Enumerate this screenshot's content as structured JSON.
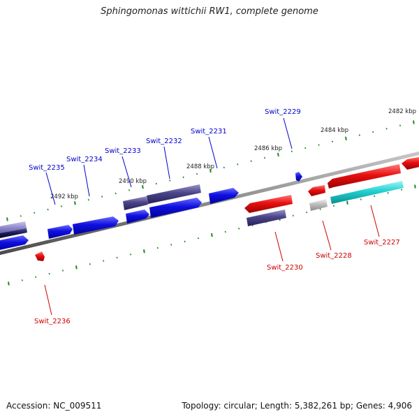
{
  "title": "Sphingomonas wittichii RW1, complete genome",
  "footer": {
    "accession": "Accession: NC_009511",
    "stats": "Topology: circular; Length: 5,382,261 bp; Genes: 4,906"
  },
  "colors": {
    "backbone": "#8a8a8a",
    "tick": "#1f8a1f",
    "label_plus": "#0000cc",
    "label_minus": "#cc0000",
    "gene_blue": "#1010e0",
    "gene_slate": "#4a4488",
    "gene_red": "#e81010",
    "gene_cyan": "#20d0d0",
    "gene_gray": "#b8b8b8"
  },
  "scale_labels": [
    "2482 kbp",
    "2484 kbp",
    "2486 kbp",
    "2488 kbp",
    "2490 kbp",
    "2492 kbp"
  ],
  "gene_labels": [
    {
      "id": "swit-2229",
      "text": "Swit_2229",
      "strand": "plus"
    },
    {
      "id": "swit-2231",
      "text": "Swit_2231",
      "strand": "plus"
    },
    {
      "id": "swit-2232",
      "text": "Swit_2232",
      "strand": "plus"
    },
    {
      "id": "swit-2233",
      "text": "Swit_2233",
      "strand": "plus"
    },
    {
      "id": "swit-2234",
      "text": "Swit_2234",
      "strand": "plus"
    },
    {
      "id": "swit-2235",
      "text": "Swit_2235",
      "strand": "plus"
    },
    {
      "id": "swit-2236",
      "text": "Swit_2236",
      "strand": "minus"
    },
    {
      "id": "swit-2230",
      "text": "Swit_2230",
      "strand": "minus"
    },
    {
      "id": "swit-2228",
      "text": "Swit_2228",
      "strand": "minus"
    },
    {
      "id": "swit-2227",
      "text": "Swit_2227",
      "strand": "minus"
    }
  ]
}
